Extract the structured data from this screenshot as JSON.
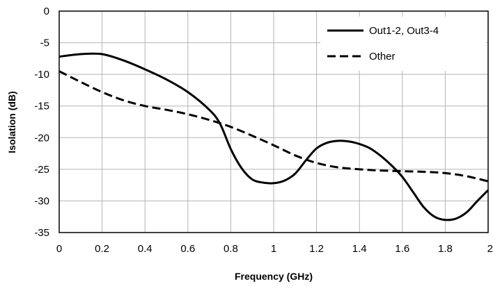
{
  "chart_data": {
    "type": "line",
    "title": "",
    "xlabel": "Frequency (GHz)",
    "ylabel": "Isolation (dB)",
    "xlim": [
      0,
      2
    ],
    "ylim": [
      -35,
      0
    ],
    "xticks": [
      0,
      0.2,
      0.4,
      0.6,
      0.8,
      1,
      1.2,
      1.4,
      1.6,
      1.8,
      2
    ],
    "yticks": [
      0,
      -5,
      -10,
      -15,
      -20,
      -25,
      -30,
      -35
    ],
    "grid": true,
    "legend_position": "top-right",
    "series": [
      {
        "name": "Out1-2, Out3-4",
        "line_style": "solid",
        "color": "#000000",
        "x": [
          0,
          0.1,
          0.2,
          0.3,
          0.4,
          0.5,
          0.6,
          0.7,
          0.75,
          0.8,
          0.85,
          0.9,
          0.95,
          1.0,
          1.05,
          1.1,
          1.15,
          1.2,
          1.25,
          1.3,
          1.35,
          1.4,
          1.45,
          1.5,
          1.55,
          1.6,
          1.65,
          1.7,
          1.75,
          1.8,
          1.85,
          1.9,
          1.95,
          2.0
        ],
        "y": [
          -7.2,
          -6.8,
          -6.8,
          -7.8,
          -9.2,
          -10.8,
          -12.8,
          -15.6,
          -17.8,
          -21.8,
          -24.8,
          -26.6,
          -27.1,
          -27.2,
          -26.8,
          -25.7,
          -23.6,
          -21.7,
          -20.8,
          -20.5,
          -20.6,
          -21.0,
          -21.7,
          -22.9,
          -24.4,
          -26.2,
          -28.6,
          -31.0,
          -32.5,
          -33.0,
          -32.8,
          -31.8,
          -30.0,
          -28.3
        ]
      },
      {
        "name": "Other",
        "line_style": "dashed",
        "color": "#000000",
        "x": [
          0,
          0.1,
          0.2,
          0.3,
          0.4,
          0.5,
          0.6,
          0.7,
          0.8,
          0.9,
          1.0,
          1.1,
          1.2,
          1.3,
          1.4,
          1.5,
          1.6,
          1.7,
          1.8,
          1.9,
          2.0
        ],
        "y": [
          -9.5,
          -11.2,
          -12.8,
          -14.1,
          -15.0,
          -15.6,
          -16.3,
          -17.2,
          -18.3,
          -19.7,
          -21.2,
          -22.8,
          -24.0,
          -24.7,
          -25.0,
          -25.2,
          -25.3,
          -25.4,
          -25.6,
          -26.1,
          -26.9
        ]
      }
    ]
  }
}
